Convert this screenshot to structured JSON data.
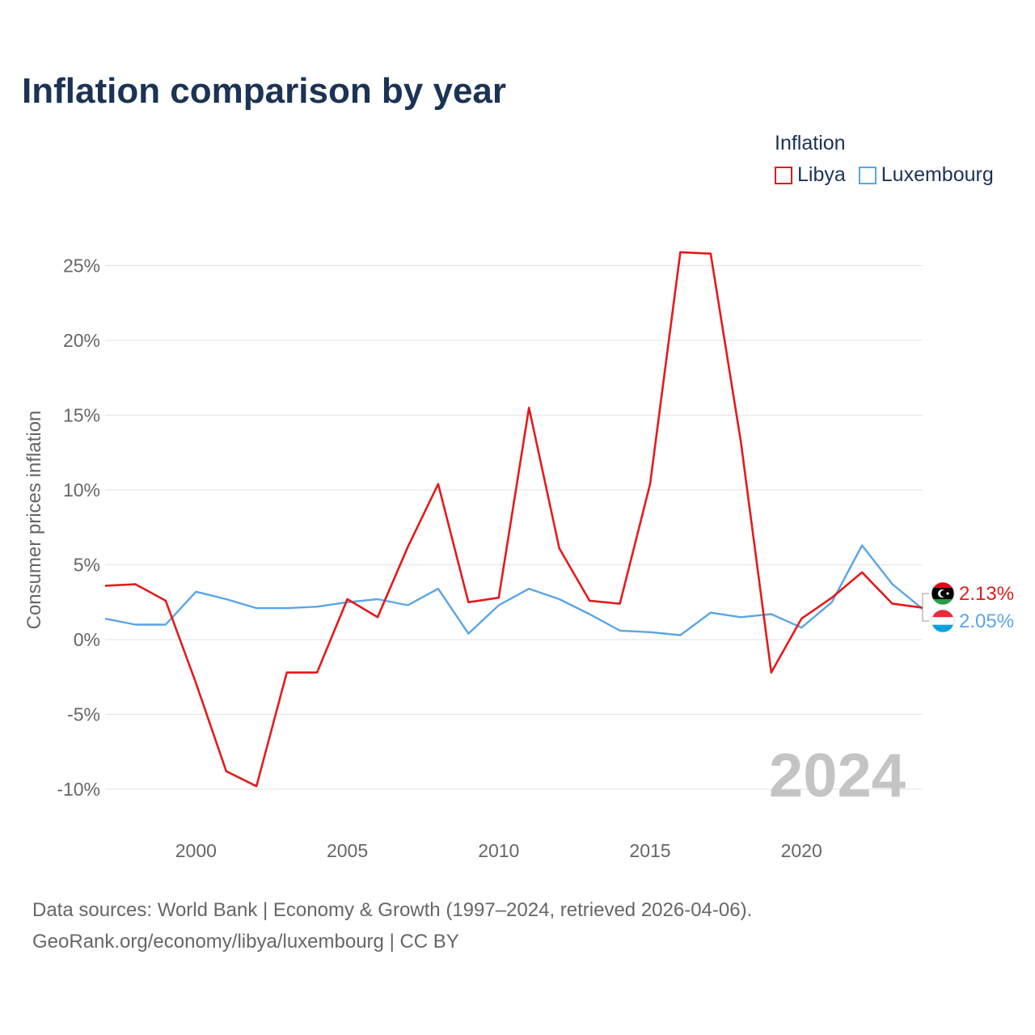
{
  "header": {
    "title": "Inflation comparison by year"
  },
  "legend": {
    "title": "Inflation",
    "items": [
      {
        "label": "Libya",
        "color": "#e41a1c"
      },
      {
        "label": "Luxembourg",
        "color": "#5aa5e8"
      }
    ]
  },
  "footer": {
    "line1": "Data sources: World Bank | Economy & Growth (1997–2024, retrieved 2026-04-06).",
    "line2": "GeoRank.org/economy/libya/luxembourg | CC BY"
  },
  "chart_data": {
    "type": "line",
    "title": "Inflation comparison by year",
    "xlabel": "",
    "ylabel": "Consumer prices inflation",
    "xlim": [
      1997,
      2024
    ],
    "ylim": [
      -12,
      28
    ],
    "x_ticks": [
      2000,
      2005,
      2010,
      2015,
      2020
    ],
    "y_ticks": [
      -10,
      -5,
      0,
      5,
      10,
      15,
      20,
      25
    ],
    "y_tick_suffix": "%",
    "grid": true,
    "legend_position": "top-right",
    "current_year_label": "2024",
    "x": [
      1997,
      1998,
      1999,
      2000,
      2001,
      2002,
      2003,
      2004,
      2005,
      2006,
      2007,
      2008,
      2009,
      2010,
      2011,
      2012,
      2013,
      2014,
      2015,
      2016,
      2017,
      2018,
      2019,
      2020,
      2021,
      2022,
      2023,
      2024
    ],
    "series": [
      {
        "name": "Libya",
        "color": "#e41a1c",
        "end_label": "2.13%",
        "values": [
          3.6,
          3.7,
          2.6,
          -2.9,
          -8.8,
          -9.8,
          -2.2,
          -2.2,
          2.7,
          1.5,
          6.2,
          10.4,
          2.5,
          2.8,
          15.5,
          6.1,
          2.6,
          2.4,
          10.4,
          25.9,
          25.8,
          13.2,
          -2.2,
          1.4,
          2.8,
          4.5,
          2.4,
          2.13
        ]
      },
      {
        "name": "Luxembourg",
        "color": "#5aa5e8",
        "end_label": "2.05%",
        "values": [
          1.4,
          1.0,
          1.0,
          3.2,
          2.7,
          2.1,
          2.1,
          2.2,
          2.5,
          2.7,
          2.3,
          3.4,
          0.4,
          2.3,
          3.4,
          2.7,
          1.7,
          0.6,
          0.5,
          0.3,
          1.8,
          1.5,
          1.7,
          0.8,
          2.5,
          6.3,
          3.7,
          2.05
        ]
      }
    ]
  }
}
